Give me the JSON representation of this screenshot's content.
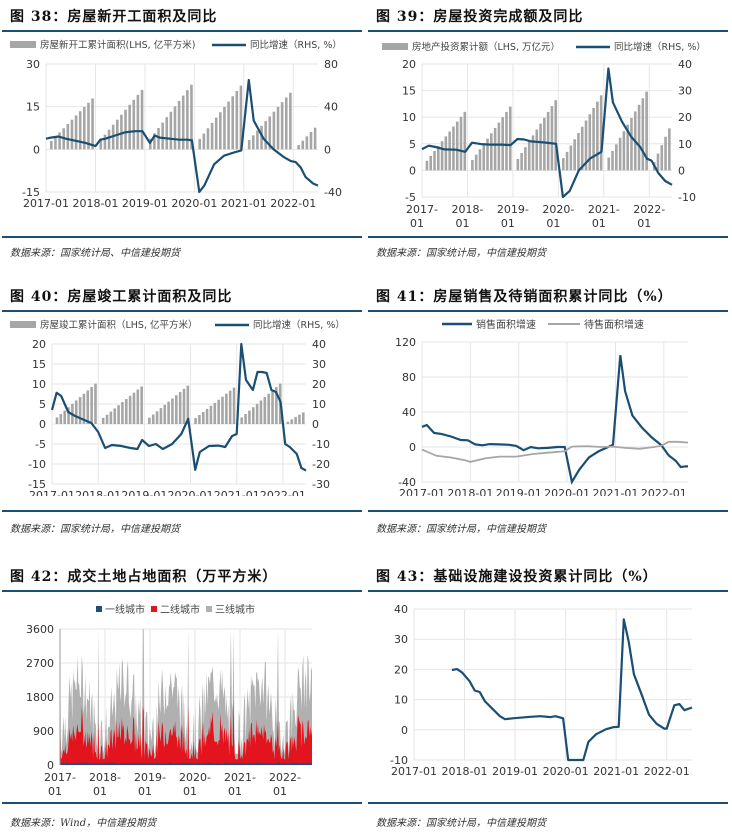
{
  "colors": {
    "line": "#1a4e72",
    "bar": "#a6a6a6",
    "grid": "#e6e6e6",
    "tier1": "#1f4e79",
    "tier2": "#e3141e",
    "tier3": "#b0b0b0",
    "pending": "#a6a6a6"
  },
  "x_labels": [
    "2017-01",
    "2018-01",
    "2019-01",
    "2020-01",
    "2021-01",
    "2022-01"
  ],
  "x_labels_split": [
    [
      "2017-",
      "01"
    ],
    [
      "2018-",
      "01"
    ],
    [
      "2019-",
      "01"
    ],
    [
      "2020-",
      "01"
    ],
    [
      "2021-",
      "01"
    ],
    [
      "2022-",
      "01"
    ]
  ],
  "chart_data": [
    {
      "id": "fig38",
      "type": "bar+line",
      "title": "图 38：房屋新开工面积及同比",
      "legend": [
        "房屋新开工累计面积(LHS, 亿平方米)",
        "同比增速（RHS, %）"
      ],
      "source": "数据来源：国家统计局、中信建投期货",
      "left_axis": {
        "ylim": [
          -15,
          30
        ],
        "ticks": [
          -15,
          0,
          15,
          30
        ]
      },
      "right_axis": {
        "ylim": [
          -40,
          80
        ],
        "ticks": [
          -40,
          0,
          40,
          80
        ]
      },
      "x_range": [
        2017.0,
        2022.5
      ],
      "bars_annual_end": [
        17.9,
        20.9,
        22.7,
        22.4,
        19.9,
        7.6
      ],
      "line": [
        [
          2017.0,
          10
        ],
        [
          2017.1,
          11
        ],
        [
          2017.25,
          12
        ],
        [
          2017.4,
          10
        ],
        [
          2017.6,
          8
        ],
        [
          2017.8,
          6
        ],
        [
          2018.0,
          3
        ],
        [
          2018.1,
          9
        ],
        [
          2018.2,
          10
        ],
        [
          2018.4,
          13
        ],
        [
          2018.6,
          16
        ],
        [
          2018.8,
          17
        ],
        [
          2018.95,
          17
        ],
        [
          2019.1,
          6
        ],
        [
          2019.2,
          13
        ],
        [
          2019.3,
          11
        ],
        [
          2019.5,
          10
        ],
        [
          2019.7,
          9
        ],
        [
          2019.85,
          9
        ],
        [
          2019.95,
          8.5
        ],
        [
          2020.1,
          -44
        ],
        [
          2020.2,
          -34
        ],
        [
          2020.4,
          -14
        ],
        [
          2020.6,
          -6
        ],
        [
          2020.8,
          -3
        ],
        [
          2020.95,
          -1
        ],
        [
          2021.1,
          65
        ],
        [
          2021.2,
          27
        ],
        [
          2021.4,
          10
        ],
        [
          2021.6,
          0
        ],
        [
          2021.8,
          -7
        ],
        [
          2021.95,
          -11
        ],
        [
          2022.05,
          -12
        ],
        [
          2022.15,
          -17
        ],
        [
          2022.25,
          -26
        ],
        [
          2022.4,
          -32
        ],
        [
          2022.5,
          -34
        ]
      ]
    },
    {
      "id": "fig39",
      "type": "bar+line",
      "title": "图 39：房屋投资完成额及同比",
      "legend": [
        "房地产投资累计额（LHS, 万亿元）",
        "同比增速（RHS, %）"
      ],
      "source": "数据来源：国家统计局，中信建投期货",
      "left_axis": {
        "ylim": [
          -5,
          20
        ],
        "ticks": [
          -5,
          0,
          5,
          10,
          15,
          20
        ]
      },
      "right_axis": {
        "ylim": [
          -10,
          40
        ],
        "ticks": [
          -10,
          0,
          10,
          20,
          30,
          40
        ]
      },
      "x_range": [
        2017.0,
        2022.5
      ],
      "bars_annual_end": [
        11.0,
        12.0,
        13.2,
        14.1,
        14.8,
        7.9
      ],
      "line": [
        [
          2017.0,
          8
        ],
        [
          2017.15,
          9.3
        ],
        [
          2017.3,
          8.8
        ],
        [
          2017.5,
          7.9
        ],
        [
          2017.75,
          7.8
        ],
        [
          2017.95,
          7.0
        ],
        [
          2018.1,
          10.4
        ],
        [
          2018.3,
          9.9
        ],
        [
          2018.5,
          9.7
        ],
        [
          2018.75,
          9.7
        ],
        [
          2018.95,
          9.5
        ],
        [
          2019.1,
          11.8
        ],
        [
          2019.25,
          11.6
        ],
        [
          2019.4,
          10.9
        ],
        [
          2019.7,
          10.5
        ],
        [
          2019.95,
          10.0
        ],
        [
          2020.1,
          -16
        ],
        [
          2020.25,
          -7.7
        ],
        [
          2020.45,
          0
        ],
        [
          2020.7,
          4.5
        ],
        [
          2020.95,
          7.0
        ],
        [
          2021.1,
          38.3
        ],
        [
          2021.2,
          25.6
        ],
        [
          2021.4,
          18.3
        ],
        [
          2021.6,
          12.7
        ],
        [
          2021.8,
          8.8
        ],
        [
          2021.95,
          4.4
        ],
        [
          2022.05,
          3.7
        ],
        [
          2022.2,
          -1.0
        ],
        [
          2022.35,
          -4.0
        ],
        [
          2022.5,
          -5.4
        ]
      ]
    },
    {
      "id": "fig40",
      "type": "bar+line",
      "title": "图 40：房屋竣工累计面积及同比",
      "legend": [
        "房屋竣工累计面积（LHS, 亿平方米）",
        "同比增速（RHS, %）"
      ],
      "source": "数据来源：国家统计局，中信建投期货",
      "left_axis": {
        "ylim": [
          -15,
          20
        ],
        "ticks": [
          -15,
          -10,
          -5,
          0,
          5,
          10,
          15,
          20
        ]
      },
      "right_axis": {
        "ylim": [
          -30,
          40
        ],
        "ticks": [
          -30,
          -20,
          -10,
          0,
          10,
          20,
          30,
          40
        ]
      },
      "x_range": [
        2017.0,
        2022.5
      ],
      "bars_annual_end": [
        10.1,
        9.4,
        9.6,
        9.1,
        10.1,
        2.9
      ],
      "line": [
        [
          2017.0,
          7
        ],
        [
          2017.1,
          15.6
        ],
        [
          2017.2,
          14
        ],
        [
          2017.35,
          6
        ],
        [
          2017.5,
          4
        ],
        [
          2017.7,
          2
        ],
        [
          2017.85,
          0.5
        ],
        [
          2018.0,
          -4
        ],
        [
          2018.15,
          -12
        ],
        [
          2018.3,
          -10.5
        ],
        [
          2018.5,
          -11
        ],
        [
          2018.7,
          -12
        ],
        [
          2018.85,
          -12.5
        ],
        [
          2018.95,
          -8
        ],
        [
          2019.1,
          -11
        ],
        [
          2019.25,
          -10
        ],
        [
          2019.4,
          -12.5
        ],
        [
          2019.6,
          -10
        ],
        [
          2019.8,
          -5
        ],
        [
          2019.95,
          2.6
        ],
        [
          2020.1,
          -22.9
        ],
        [
          2020.2,
          -14
        ],
        [
          2020.4,
          -11
        ],
        [
          2020.6,
          -10.8
        ],
        [
          2020.75,
          -11.5
        ],
        [
          2020.9,
          -6
        ],
        [
          2021.0,
          -5
        ],
        [
          2021.1,
          40.4
        ],
        [
          2021.2,
          22
        ],
        [
          2021.35,
          17
        ],
        [
          2021.45,
          26
        ],
        [
          2021.55,
          26
        ],
        [
          2021.65,
          25.5
        ],
        [
          2021.75,
          17
        ],
        [
          2021.85,
          16
        ],
        [
          2021.95,
          11
        ],
        [
          2022.05,
          -10
        ],
        [
          2022.15,
          -11.5
        ],
        [
          2022.3,
          -15
        ],
        [
          2022.4,
          -22
        ],
        [
          2022.5,
          -23.3
        ]
      ]
    },
    {
      "id": "fig41",
      "type": "line",
      "title": "图 41：房屋销售及待销面积累计同比（%）",
      "legend": [
        "销售面积增速",
        "待售面积增速"
      ],
      "source": "数据来源：国家统计局，中信建投期货",
      "ylim": [
        -40,
        120
      ],
      "yticks": [
        -40,
        0,
        40,
        80,
        120
      ],
      "x_range": [
        2017.0,
        2022.5
      ],
      "series": [
        {
          "name": "销售面积增速",
          "values": [
            [
              2017.0,
              23
            ],
            [
              2017.1,
              25.1
            ],
            [
              2017.25,
              16
            ],
            [
              2017.4,
              15
            ],
            [
              2017.6,
              12
            ],
            [
              2017.8,
              8
            ],
            [
              2017.95,
              7.7
            ],
            [
              2018.1,
              3
            ],
            [
              2018.25,
              2
            ],
            [
              2018.4,
              3.3
            ],
            [
              2018.6,
              3
            ],
            [
              2018.8,
              2.5
            ],
            [
              2018.95,
              1.3
            ],
            [
              2019.1,
              -3.6
            ],
            [
              2019.25,
              0
            ],
            [
              2019.4,
              -1.5
            ],
            [
              2019.6,
              -1
            ],
            [
              2019.8,
              0
            ],
            [
              2019.95,
              0
            ],
            [
              2020.1,
              -39.9
            ],
            [
              2020.25,
              -26
            ],
            [
              2020.45,
              -12
            ],
            [
              2020.65,
              -5
            ],
            [
              2020.85,
              0
            ],
            [
              2020.95,
              2.6
            ],
            [
              2021.1,
              104.9
            ],
            [
              2021.2,
              63.8
            ],
            [
              2021.35,
              36
            ],
            [
              2021.55,
              22
            ],
            [
              2021.75,
              11
            ],
            [
              2021.95,
              1.9
            ],
            [
              2022.1,
              -9.6
            ],
            [
              2022.25,
              -16
            ],
            [
              2022.35,
              -23
            ],
            [
              2022.45,
              -22
            ],
            [
              2022.5,
              -22.2
            ]
          ]
        },
        {
          "name": "待售面积增速",
          "values": [
            [
              2017.0,
              -3
            ],
            [
              2017.3,
              -10
            ],
            [
              2017.6,
              -12
            ],
            [
              2017.9,
              -15.3
            ],
            [
              2018.0,
              -17
            ],
            [
              2018.3,
              -13
            ],
            [
              2018.6,
              -11
            ],
            [
              2018.95,
              -11
            ],
            [
              2019.3,
              -8
            ],
            [
              2019.6,
              -6.5
            ],
            [
              2019.95,
              -4.9
            ],
            [
              2020.1,
              0.5
            ],
            [
              2020.4,
              1
            ],
            [
              2020.7,
              0
            ],
            [
              2020.95,
              0.5
            ],
            [
              2021.2,
              -1
            ],
            [
              2021.5,
              -2
            ],
            [
              2021.8,
              0
            ],
            [
              2021.95,
              1.5
            ],
            [
              2022.1,
              6
            ],
            [
              2022.3,
              6
            ],
            [
              2022.5,
              5
            ]
          ]
        }
      ]
    },
    {
      "id": "fig42",
      "type": "area",
      "title": "图 42：成交土地占地面积（万平方米）",
      "legend": [
        "一线城市",
        "二线城市",
        "三线城市"
      ],
      "source": "数据来源：Wind，中信建投期货",
      "ylim": [
        0,
        3600
      ],
      "yticks": [
        0,
        900,
        1800,
        2700,
        3600
      ],
      "x_range": [
        2017.0,
        2022.6
      ],
      "weekly_profile_note": "weekly stacked series, ~290 points; tier1 ~40, tier2 ~200-1600, total ~300-3600",
      "spikes_to_max_at": [
        2017.0,
        2017.85,
        2018.85,
        2019.85,
        2020.8,
        2020.85,
        2021.85
      ],
      "typical_levels": {
        "tier1": 40,
        "tier2_mean": 650,
        "total_mean": 1900
      }
    },
    {
      "id": "fig43",
      "type": "line",
      "title": "图 43：基础设施建设投资累计同比（%）",
      "legend": [],
      "source": "数据来源：国家统计局，中信建投期货",
      "ylim": [
        -10,
        40
      ],
      "yticks": [
        -10,
        0,
        10,
        20,
        30,
        40
      ],
      "x_range": [
        2017.0,
        2022.5
      ],
      "series": [
        {
          "name": "基础设施建设投资累计同比",
          "values": [
            [
              2017.75,
              19.8
            ],
            [
              2017.85,
              20.1
            ],
            [
              2017.95,
              19
            ],
            [
              2018.1,
              16.1
            ],
            [
              2018.2,
              13
            ],
            [
              2018.3,
              12.5
            ],
            [
              2018.4,
              9.5
            ],
            [
              2018.55,
              7
            ],
            [
              2018.7,
              4.5
            ],
            [
              2018.8,
              3.5
            ],
            [
              2018.95,
              3.8
            ],
            [
              2019.1,
              4.0
            ],
            [
              2019.3,
              4.3
            ],
            [
              2019.5,
              4.5
            ],
            [
              2019.7,
              4.2
            ],
            [
              2019.8,
              4.5
            ],
            [
              2019.95,
              3.8
            ],
            [
              2020.05,
              -10
            ],
            [
              2020.35,
              -10
            ],
            [
              2020.45,
              -4
            ],
            [
              2020.6,
              -1.5
            ],
            [
              2020.8,
              0.2
            ],
            [
              2020.95,
              0.9
            ],
            [
              2021.05,
              1.0
            ],
            [
              2021.15,
              36.6
            ],
            [
              2021.25,
              29
            ],
            [
              2021.35,
              18.4
            ],
            [
              2021.5,
              11.8
            ],
            [
              2021.65,
              5
            ],
            [
              2021.8,
              2
            ],
            [
              2021.95,
              0.4
            ],
            [
              2022.0,
              0.4
            ],
            [
              2022.15,
              8.1
            ],
            [
              2022.25,
              8.5
            ],
            [
              2022.35,
              6.5
            ],
            [
              2022.5,
              7.4
            ]
          ]
        }
      ]
    }
  ]
}
